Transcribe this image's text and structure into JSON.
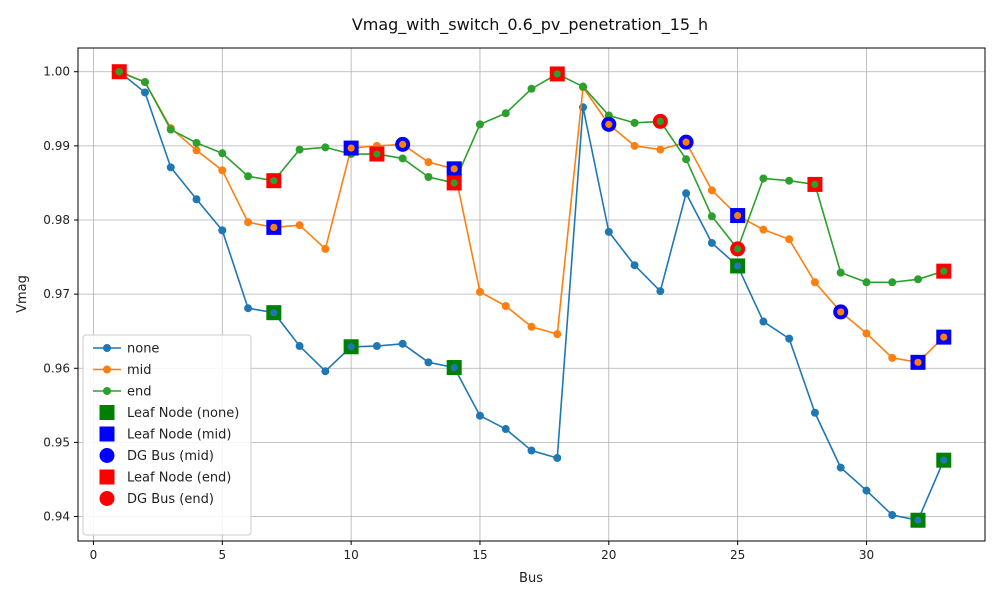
{
  "chart_data": {
    "type": "line",
    "title": "Vmag_with_switch_0.6_pv_penetration_15_h",
    "xlabel": "Bus",
    "ylabel": "Vmag",
    "xlim": [
      -0.6,
      34.6
    ],
    "ylim": [
      0.9367,
      1.0032
    ],
    "x_ticks": [
      0,
      5,
      10,
      15,
      20,
      25,
      30
    ],
    "x_tick_labels": [
      "0",
      "5",
      "10",
      "15",
      "20",
      "25",
      "30"
    ],
    "y_ticks": [
      0.94,
      0.95,
      0.96,
      0.97,
      0.98,
      0.99,
      1.0
    ],
    "y_tick_labels": [
      "0.94",
      "0.95",
      "0.96",
      "0.97",
      "0.98",
      "0.99",
      "1.00"
    ],
    "grid": true,
    "legend_position": "lower-left",
    "x": [
      1,
      2,
      3,
      4,
      5,
      6,
      7,
      8,
      9,
      10,
      11,
      12,
      13,
      14,
      15,
      16,
      17,
      18,
      19,
      20,
      21,
      22,
      23,
      24,
      25,
      26,
      27,
      28,
      29,
      30,
      31,
      32,
      33
    ],
    "series": [
      {
        "name": "none",
        "color": "#1f77b4",
        "values": [
          1.0,
          0.9972,
          0.9871,
          0.9828,
          0.9786,
          0.9681,
          0.9675,
          0.963,
          0.9596,
          0.9629,
          0.963,
          0.9633,
          0.9608,
          0.9601,
          0.9536,
          0.9518,
          0.9489,
          0.9479,
          0.9952,
          0.9784,
          0.9739,
          0.9704,
          0.9836,
          0.9769,
          0.9738,
          0.9663,
          0.964,
          0.954,
          0.9466,
          0.9435,
          0.9402,
          0.9395,
          0.9476
        ]
      },
      {
        "name": "mid",
        "color": "#ff7f0e",
        "values": [
          1.0,
          0.9986,
          0.9924,
          0.9894,
          0.9867,
          0.9797,
          0.979,
          0.9793,
          0.9761,
          0.9897,
          0.99,
          0.9902,
          0.9878,
          0.9869,
          0.9703,
          0.9684,
          0.9656,
          0.9646,
          0.9979,
          0.9929,
          0.99,
          0.9895,
          0.9905,
          0.984,
          0.9806,
          0.9787,
          0.9774,
          0.9716,
          0.9676,
          0.9647,
          0.9614,
          0.9608,
          0.9642
        ]
      },
      {
        "name": "end",
        "color": "#2ca02c",
        "values": [
          1.0,
          0.9986,
          0.9922,
          0.9904,
          0.989,
          0.9859,
          0.9853,
          0.9895,
          0.9898,
          0.9889,
          0.9889,
          0.9883,
          0.9858,
          0.985,
          0.9929,
          0.9944,
          0.9977,
          0.9997,
          0.998,
          0.9941,
          0.9931,
          0.9933,
          0.9882,
          0.9805,
          0.9761,
          0.9856,
          0.9853,
          0.9848,
          0.9729,
          0.9716,
          0.9716,
          0.972,
          0.9731
        ]
      }
    ],
    "markers": [
      {
        "name": "Leaf Node (none)",
        "shape": "square",
        "color": "#008000",
        "points": [
          [
            7,
            0.9675
          ],
          [
            10,
            0.9629
          ],
          [
            14,
            0.9601
          ],
          [
            25,
            0.9738
          ],
          [
            32,
            0.9395
          ],
          [
            33,
            0.9476
          ]
        ]
      },
      {
        "name": "Leaf Node (mid)",
        "shape": "square",
        "color": "#0000ff",
        "points": [
          [
            7,
            0.979
          ],
          [
            10,
            0.9897
          ],
          [
            14,
            0.9869
          ],
          [
            25,
            0.9806
          ],
          [
            32,
            0.9608
          ],
          [
            33,
            0.9642
          ]
        ]
      },
      {
        "name": "DG Bus (mid)",
        "shape": "circle",
        "color": "#0000ff",
        "points": [
          [
            12,
            0.9902
          ],
          [
            20,
            0.9929
          ],
          [
            23,
            0.9905
          ],
          [
            29,
            0.9676
          ]
        ]
      },
      {
        "name": "Leaf Node (end)",
        "shape": "square",
        "color": "#ff0000",
        "points": [
          [
            1,
            1.0
          ],
          [
            7,
            0.9853
          ],
          [
            11,
            0.9889
          ],
          [
            14,
            0.985
          ],
          [
            18,
            0.9997
          ],
          [
            28,
            0.9848
          ],
          [
            33,
            0.9731
          ]
        ]
      },
      {
        "name": "DG Bus (end)",
        "shape": "circle",
        "color": "#ff0000",
        "points": [
          [
            22,
            0.9933
          ],
          [
            25,
            0.9761
          ]
        ]
      }
    ]
  }
}
